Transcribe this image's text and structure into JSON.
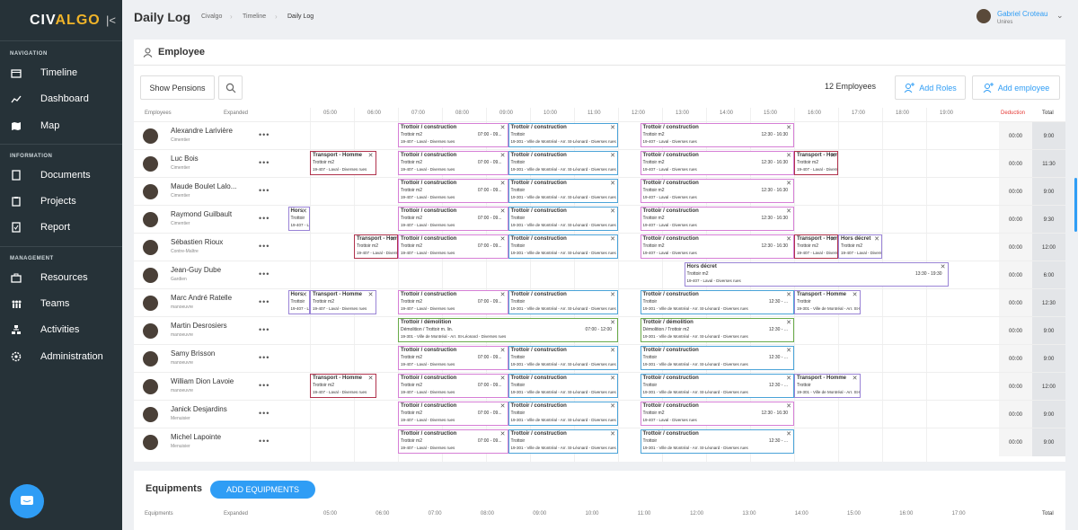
{
  "sidebar": {
    "logo_a": "CIV",
    "logo_b": "ALGO",
    "sections": {
      "navigation": "NAVIGATION",
      "information": "INFORMATION",
      "management": "MANAGEMENT"
    },
    "items": [
      {
        "label": "Timeline",
        "icon": "calendar-icon"
      },
      {
        "label": "Dashboard",
        "icon": "chart-icon"
      },
      {
        "label": "Map",
        "icon": "map-icon"
      },
      {
        "label": "Documents",
        "icon": "document-icon"
      },
      {
        "label": "Projects",
        "icon": "clipboard-icon"
      },
      {
        "label": "Report",
        "icon": "report-icon"
      },
      {
        "label": "Resources",
        "icon": "toolbox-icon"
      },
      {
        "label": "Teams",
        "icon": "team-icon"
      },
      {
        "label": "Activities",
        "icon": "activities-icon"
      },
      {
        "label": "Administration",
        "icon": "gear-icon"
      }
    ]
  },
  "header": {
    "title": "Daily Log",
    "breadcrumb": [
      "Civalgo",
      "Timeline",
      "Daily Log"
    ],
    "user": {
      "name": "Gabriel Croteau",
      "org": "Unires"
    }
  },
  "employees_panel": {
    "title": "Employee",
    "show_pensions": "Show Pensions",
    "count": "12 Employees",
    "add_roles": "Add Roles",
    "add_employee": "Add employee",
    "col_employees": "Employees",
    "col_expanded": "Expanded",
    "col_deduction": "Deduction",
    "col_total": "Total",
    "hours": [
      "05:00",
      "06:00",
      "07:00",
      "08:00",
      "09:00",
      "10:00",
      "11:00",
      "12:00",
      "13:00",
      "14:00",
      "15:00",
      "16:00",
      "17:00",
      "18:00",
      "19:00"
    ],
    "rows": [
      {
        "name": "Alexandre Larivière",
        "role": "Cimentier",
        "deduction": "00:00",
        "total": "9:00"
      },
      {
        "name": "Luc Bois",
        "role": "Cimentier",
        "deduction": "00:00",
        "total": "11:30"
      },
      {
        "name": "Maude Boulet Lalo...",
        "role": "Cimentier",
        "deduction": "00:00",
        "total": "9:00"
      },
      {
        "name": "Raymond Guilbault",
        "role": "Cimentier",
        "deduction": "00:00",
        "total": "9:30"
      },
      {
        "name": "Sébastien Rioux",
        "role": "Contre-Maître",
        "deduction": "00:00",
        "total": "12:00"
      },
      {
        "name": "Jean-Guy Dube",
        "role": "Gardien",
        "deduction": "00:00",
        "total": "6:00"
      },
      {
        "name": "Marc André Ratelle",
        "role": "manoeuvre",
        "deduction": "00:00",
        "total": "12:30"
      },
      {
        "name": "Martin Desrosiers",
        "role": "manoeuvre",
        "deduction": "00:00",
        "total": "9:00"
      },
      {
        "name": "Samy Brisson",
        "role": "manoeuvre",
        "deduction": "00:00",
        "total": "9:00"
      },
      {
        "name": "William Dion Lavoie",
        "role": "manoeuvre",
        "deduction": "00:00",
        "total": "12:00"
      },
      {
        "name": "Janick Desjardins",
        "role": "Menuisier",
        "deduction": "00:00",
        "total": "9:00"
      },
      {
        "name": "Michel Lapointe",
        "role": "Menuisier",
        "deduction": "00:00",
        "total": "9:00"
      }
    ],
    "blocks": {
      "tc": "Trottoir / construction",
      "tm2": "Trottoir m2",
      "tr": "Trottoir",
      "trm": "Trottoir m. lin.",
      "c407": "19-407 - Laval - Diverses rues",
      "c301": "19-301 - Ville de Montréal - Arr. St-Léonard - Diverses rues",
      "t1": "07:00 - 09...",
      "t2": "12:30 - 16:30",
      "t3": "12:30 - ...",
      "t4": "13:30 - 19:30",
      "t5": "07:00 - 12:00",
      "th": "Transport - Homme",
      "td": "Trottoir / démolition",
      "dtl": "Démolition / Trottoir m. lin.",
      "demol": "Démolition / Trottoir m2",
      "hd": "Hors décret",
      "hs": "Hors"
    }
  },
  "equip_panel": {
    "title": "Equipments",
    "add": "ADD EQUIPMENTS",
    "col": "Equipments",
    "expanded": "Expanded",
    "total": "Total",
    "hours": [
      "05:00",
      "06:00",
      "07:00",
      "08:00",
      "09:00",
      "10:00",
      "11:00",
      "12:00",
      "13:00",
      "14:00",
      "15:00",
      "16:00",
      "17:00"
    ]
  },
  "colors": {
    "accent": "#2f9df5",
    "pink": "#d67fd6",
    "blue": "#4aa3d8",
    "green": "#6aab4a",
    "crimson": "#b0334d",
    "purple": "#9a84d6"
  }
}
